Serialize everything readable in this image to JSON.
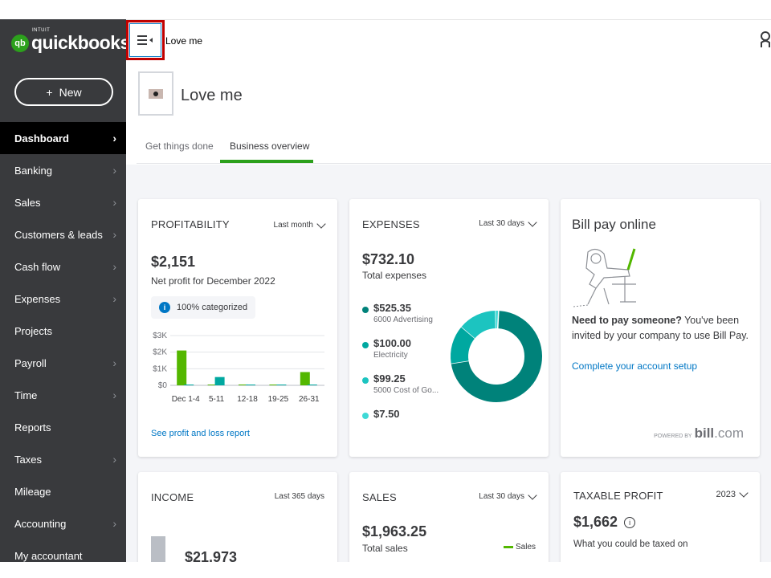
{
  "brand": {
    "intuit": "INTUIT",
    "name": "quickbooks",
    "badge": "qb"
  },
  "new_button": {
    "plus": "+",
    "label": "New"
  },
  "sidebar": {
    "items": [
      {
        "label": "Dashboard",
        "chevron": "›"
      },
      {
        "label": "Banking",
        "chevron": "›"
      },
      {
        "label": "Sales",
        "chevron": "›"
      },
      {
        "label": "Customers & leads",
        "chevron": "›"
      },
      {
        "label": "Cash flow",
        "chevron": "›"
      },
      {
        "label": "Expenses",
        "chevron": "›"
      },
      {
        "label": "Projects",
        "chevron": ""
      },
      {
        "label": "Payroll",
        "chevron": "›"
      },
      {
        "label": "Time",
        "chevron": "›"
      },
      {
        "label": "Reports",
        "chevron": ""
      },
      {
        "label": "Taxes",
        "chevron": "›"
      },
      {
        "label": "Mileage",
        "chevron": ""
      },
      {
        "label": "Accounting",
        "chevron": "›"
      },
      {
        "label": "My accountant",
        "chevron": ""
      }
    ]
  },
  "topbar": {
    "company": "Love me"
  },
  "company": {
    "title": "Love me"
  },
  "tabs": [
    {
      "label": "Get things done"
    },
    {
      "label": "Business overview"
    }
  ],
  "profitability": {
    "title": "PROFITABILITY",
    "filter": "Last month",
    "amount": "$2,151",
    "caption": "Net profit for December 2022",
    "pill_icon": "i",
    "pill": "100% categorized",
    "link": "See profit and loss report"
  },
  "expenses": {
    "title": "EXPENSES",
    "filter": "Last 30 days",
    "amount": "$732.10",
    "caption": "Total expenses",
    "items": [
      {
        "value": "$525.35",
        "label": "6000 Advertising",
        "color": "#00827a"
      },
      {
        "value": "$100.00",
        "label": "Electricity",
        "color": "#00a8a0"
      },
      {
        "value": "$99.25",
        "label": "5000 Cost of Go...",
        "color": "#1cc4c0"
      },
      {
        "value": "$7.50",
        "label": "",
        "color": "#3fd9d6"
      }
    ]
  },
  "billpay": {
    "title": "Bill pay online",
    "bold": "Need to pay someone?",
    "text": " You've been invited by your company to use Bill Pay.",
    "link": "Complete your account setup",
    "powered_by": "POWERED BY",
    "bill": "bill",
    "com": ".com"
  },
  "income": {
    "title": "INCOME",
    "filter": "Last 365 days",
    "amount": "$21,973"
  },
  "sales": {
    "title": "SALES",
    "filter": "Last 30 days",
    "amount": "$1,963.25",
    "caption": "Total sales",
    "legend": "Sales"
  },
  "taxable": {
    "title": "TAXABLE PROFIT",
    "filter": "2023",
    "amount": "$1,662",
    "info": "i",
    "caption": "What you could be taxed on"
  },
  "chart_data": {
    "type": "bar",
    "categories": [
      "Dec 1-4",
      "5-11",
      "12-18",
      "19-25",
      "26-31"
    ],
    "series": [
      {
        "values": [
          2100,
          0,
          50,
          0,
          800
        ],
        "color": "#53b700"
      },
      {
        "values": [
          0,
          500,
          0,
          0,
          0
        ],
        "color": "#00a8a0"
      }
    ],
    "ylabels": [
      "$3K",
      "$2K",
      "$1K",
      "$0"
    ],
    "ylim": [
      0,
      3000
    ],
    "grid": true
  },
  "colors": {
    "accent": "#2ca01c",
    "link": "#0077c5",
    "sidebar": "#393a3d"
  }
}
